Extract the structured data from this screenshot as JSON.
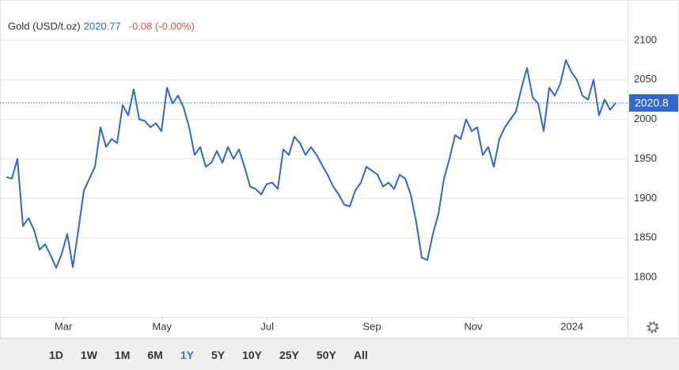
{
  "chart_data": {
    "type": "line",
    "name": "Gold (USD/t.oz)",
    "price": 2020.77,
    "change": "-0.08 (-0.00%)",
    "price_label": "2020.8",
    "color": "#3366cc",
    "values": [
      1927,
      1925,
      1950,
      1865,
      1875,
      1860,
      1835,
      1842,
      1828,
      1812,
      1830,
      1855,
      1813,
      1860,
      1910,
      1925,
      1940,
      1990,
      1965,
      1975,
      1970,
      2018,
      2005,
      2038,
      2000,
      1998,
      1990,
      1995,
      1985,
      2040,
      2020,
      2030,
      2015,
      1990,
      1955,
      1965,
      1940,
      1945,
      1960,
      1945,
      1965,
      1950,
      1962,
      1940,
      1915,
      1912,
      1905,
      1918,
      1920,
      1912,
      1962,
      1955,
      1978,
      1970,
      1955,
      1965,
      1955,
      1942,
      1930,
      1915,
      1905,
      1892,
      1890,
      1910,
      1920,
      1940,
      1935,
      1930,
      1915,
      1920,
      1912,
      1930,
      1925,
      1905,
      1870,
      1825,
      1822,
      1855,
      1880,
      1925,
      1950,
      1980,
      1975,
      2000,
      1985,
      1990,
      1955,
      1965,
      1940,
      1975,
      1990,
      2000,
      2010,
      2040,
      2065,
      2028,
      2020,
      1985,
      2040,
      2030,
      2045,
      2075,
      2060,
      2050,
      2030,
      2025,
      2050,
      2005,
      2025,
      2012,
      2021
    ],
    "xlim": [
      0,
      112
    ],
    "xticks": [
      {
        "value": 10.3,
        "label": "Mar"
      },
      {
        "value": 28.1,
        "label": "May"
      },
      {
        "value": 47.1,
        "label": "Jul"
      },
      {
        "value": 66,
        "label": "Sep"
      },
      {
        "value": 84.3,
        "label": "Nov"
      },
      {
        "value": 102.1,
        "label": "2024"
      }
    ],
    "ylim": [
      1750,
      2146
    ],
    "yticks": [
      1800,
      1850,
      1900,
      1950,
      2000,
      2050,
      2100
    ],
    "grid": true,
    "ranges": [
      "1D",
      "1W",
      "1M",
      "6M",
      "1Y",
      "5Y",
      "10Y",
      "25Y",
      "50Y",
      "All"
    ],
    "selected_range": "1Y"
  }
}
